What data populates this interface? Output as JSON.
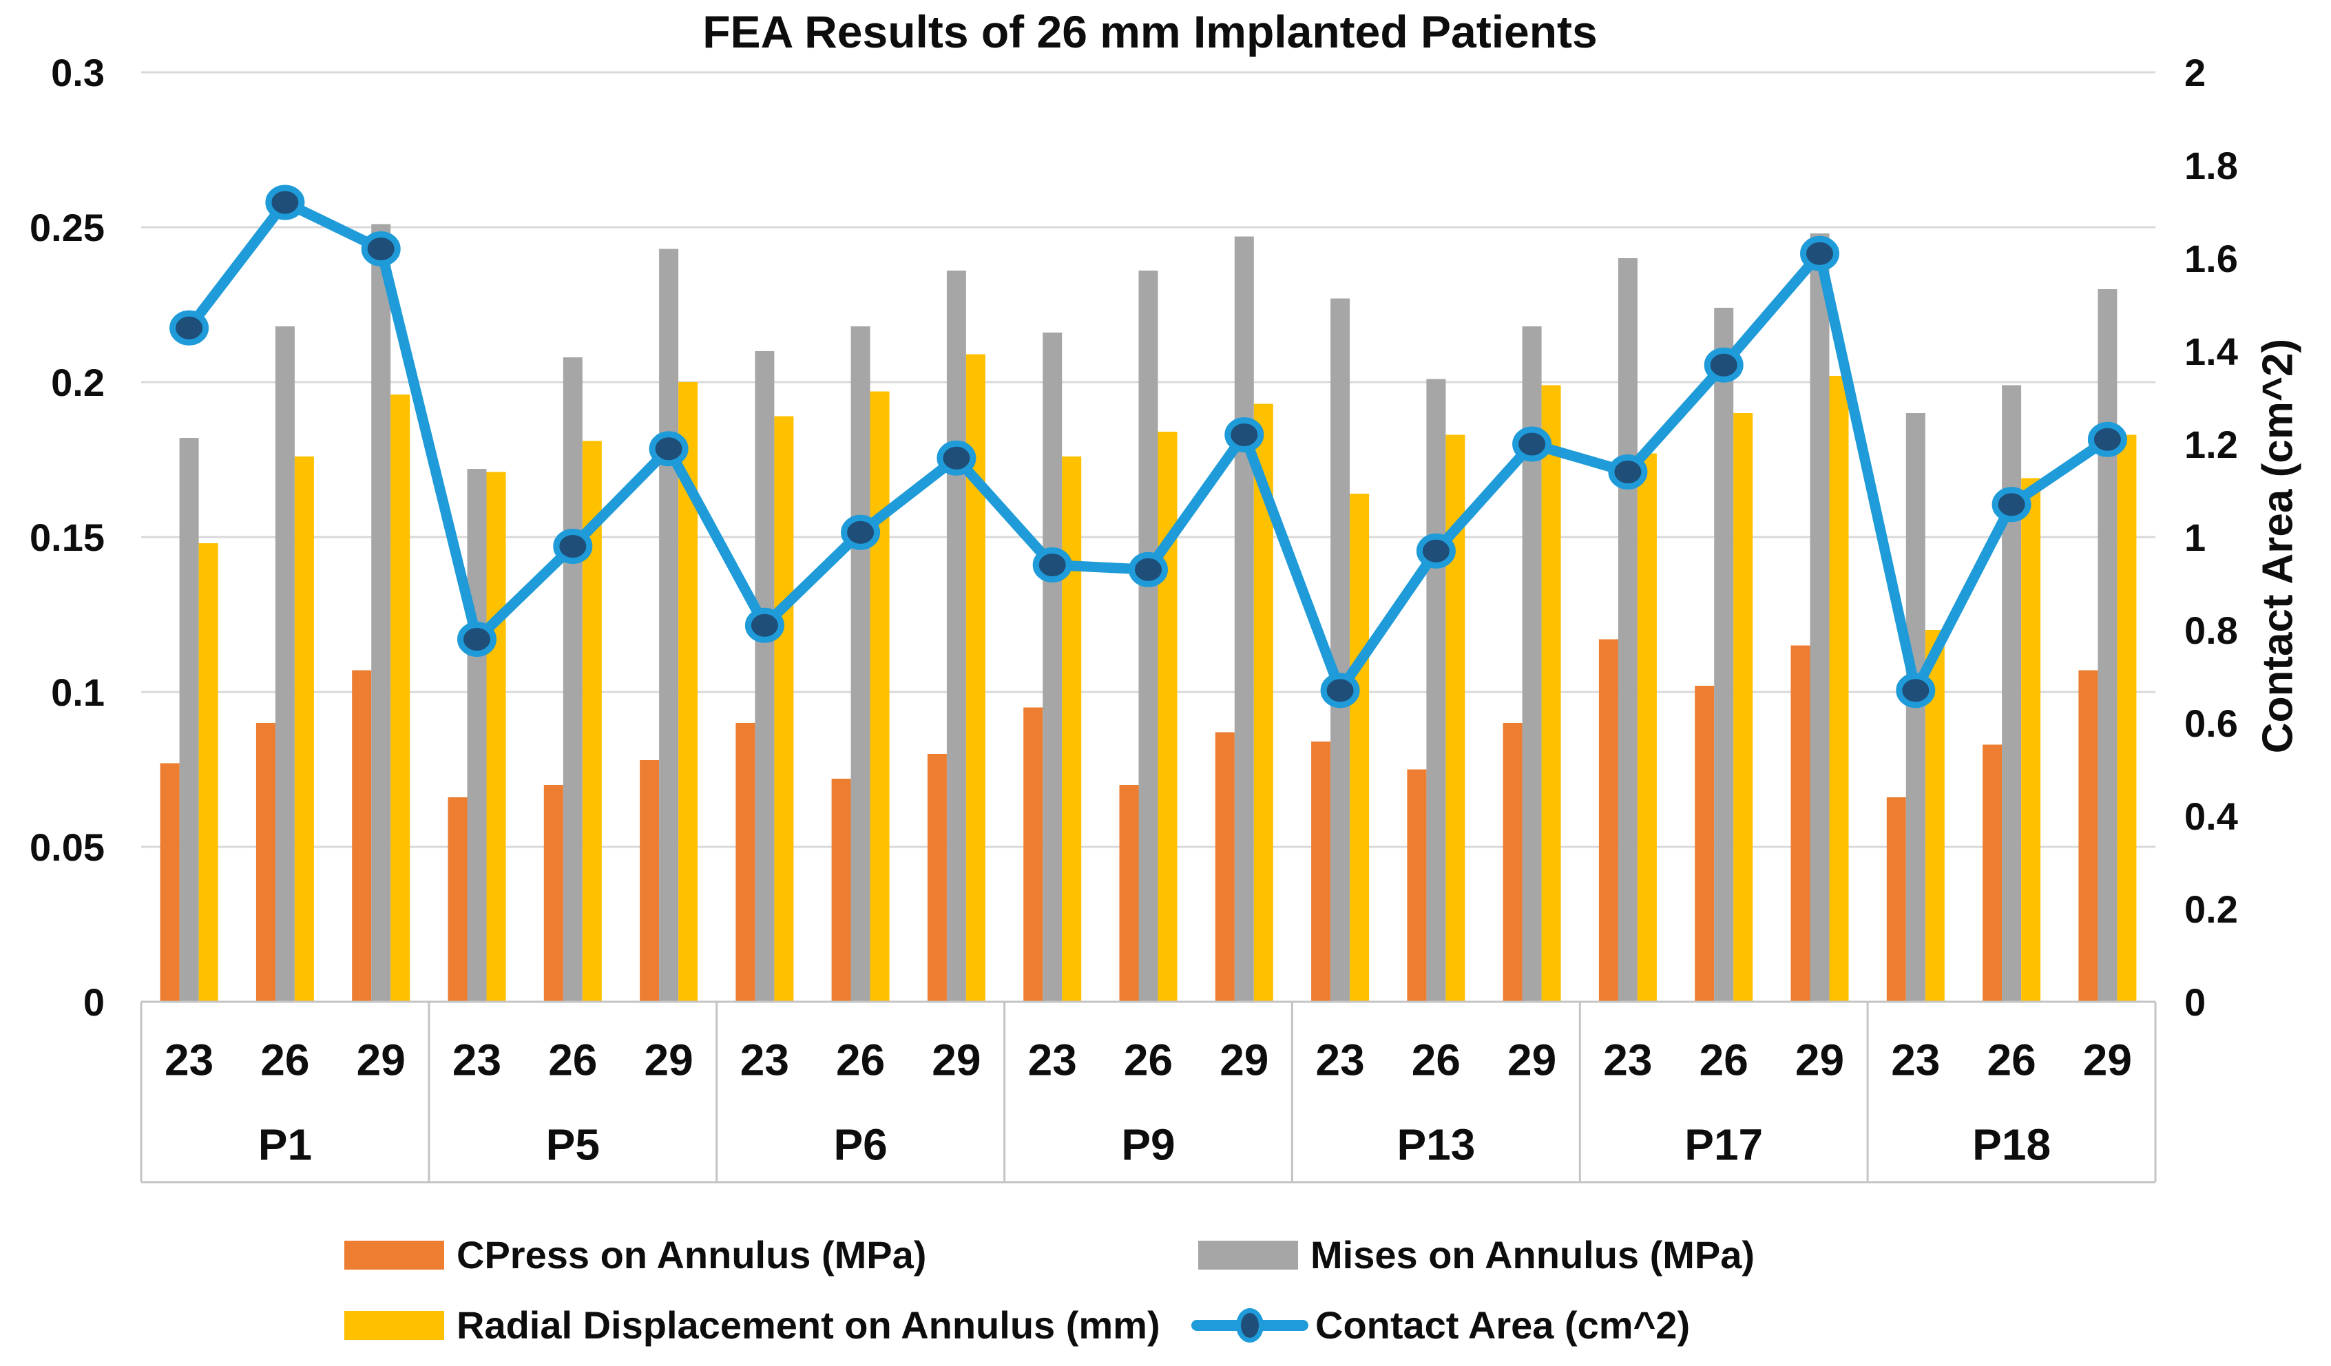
{
  "title": "FEA Results of 26 mm Implanted Patients",
  "chart_data": {
    "type": "bar",
    "subtype": "grouped-bar-with-line-combo",
    "title": "FEA Results of 26 mm Implanted Patients",
    "groups": [
      "P1",
      "P5",
      "P6",
      "P9",
      "P13",
      "P17",
      "P18"
    ],
    "subcategories": [
      "23",
      "26",
      "29"
    ],
    "grid": "horizontal-on",
    "legend_position": "bottom",
    "left_axis": {
      "min": 0,
      "max": 0.3,
      "tick_step": 0.05,
      "ticks": [
        "0",
        "0.05",
        "0.1",
        "0.15",
        "0.2",
        "0.25",
        "0.3"
      ]
    },
    "right_axis": {
      "min": 0,
      "max": 2,
      "tick_step": 0.2,
      "ticks": [
        "0",
        "0.2",
        "0.4",
        "0.6",
        "0.8",
        "1",
        "1.2",
        "1.4",
        "1.6",
        "1.8",
        "2"
      ],
      "label": "Contact Area (cm^2)"
    },
    "series": [
      {
        "name": "CPress on Annulus (MPa)",
        "type": "bar",
        "axis": "left",
        "color": "#ED7D31",
        "values": [
          [
            0.077,
            0.09,
            0.107
          ],
          [
            0.066,
            0.07,
            0.078
          ],
          [
            0.09,
            0.072,
            0.08
          ],
          [
            0.095,
            0.07,
            0.087
          ],
          [
            0.084,
            0.075,
            0.09
          ],
          [
            0.117,
            0.102,
            0.115
          ],
          [
            0.066,
            0.083,
            0.107
          ]
        ]
      },
      {
        "name": "Mises on Annulus (MPa)",
        "type": "bar",
        "axis": "left",
        "color": "#A6A6A6",
        "values": [
          [
            0.182,
            0.218,
            0.251
          ],
          [
            0.172,
            0.208,
            0.243
          ],
          [
            0.21,
            0.218,
            0.236
          ],
          [
            0.216,
            0.236,
            0.247
          ],
          [
            0.227,
            0.201,
            0.218
          ],
          [
            0.24,
            0.224,
            0.248
          ],
          [
            0.19,
            0.199,
            0.23
          ]
        ]
      },
      {
        "name": "Radial Displacement on Annulus (mm)",
        "type": "bar",
        "axis": "left",
        "color": "#FFC000",
        "values": [
          [
            0.148,
            0.176,
            0.196
          ],
          [
            0.171,
            0.181,
            0.2
          ],
          [
            0.189,
            0.197,
            0.209
          ],
          [
            0.176,
            0.184,
            0.193
          ],
          [
            0.164,
            0.183,
            0.199
          ],
          [
            0.177,
            0.19,
            0.202
          ],
          [
            0.12,
            0.169,
            0.183
          ]
        ]
      },
      {
        "name": "Contact Area (cm^2)",
        "type": "line",
        "axis": "right",
        "color": "#1E9BD8",
        "marker_color": "#1F4E79",
        "values": [
          [
            1.45,
            1.72,
            1.62
          ],
          [
            0.78,
            0.98,
            1.19
          ],
          [
            0.81,
            1.01,
            1.17
          ],
          [
            0.94,
            0.93,
            1.22
          ],
          [
            0.67,
            0.97,
            1.2
          ],
          [
            1.14,
            1.37,
            1.61
          ],
          [
            0.67,
            1.07,
            1.21
          ]
        ]
      }
    ],
    "colors": {
      "gridline": "#D9D9D9",
      "axis_line": "#C4C4C4",
      "text": "#0d0d0d"
    }
  },
  "legend": {
    "cpress_label": "CPress on Annulus (MPa)",
    "mises_label": "Mises on Annulus (MPa)",
    "radial_label": "Radial Displacement on Annulus (mm)",
    "contact_label": "Contact Area (cm^2)"
  }
}
